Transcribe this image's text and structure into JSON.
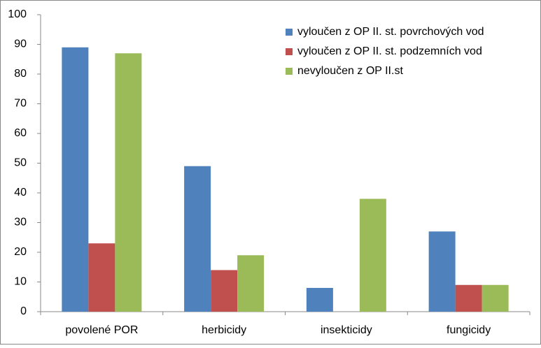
{
  "chart_data": {
    "type": "bar",
    "categories": [
      "povolené POR",
      "herbicidy",
      "insekticidy",
      "fungicidy"
    ],
    "series": [
      {
        "name": "vyloučen z OP II. st. povrchových vod",
        "color": "#4f81bd",
        "values": [
          89,
          49,
          8,
          27
        ]
      },
      {
        "name": "vyloučen z OP II. st. podzemních vod",
        "color": "#c0504d",
        "values": [
          23,
          14,
          0,
          9
        ]
      },
      {
        "name": "nevyloučen z OP II.st",
        "color": "#9bbb59",
        "values": [
          87,
          19,
          38,
          9
        ]
      }
    ],
    "ylim": [
      0,
      100
    ],
    "yticks": [
      0,
      10,
      20,
      30,
      40,
      50,
      60,
      70,
      80,
      90,
      100
    ],
    "grid": false,
    "legend": "top-right"
  }
}
